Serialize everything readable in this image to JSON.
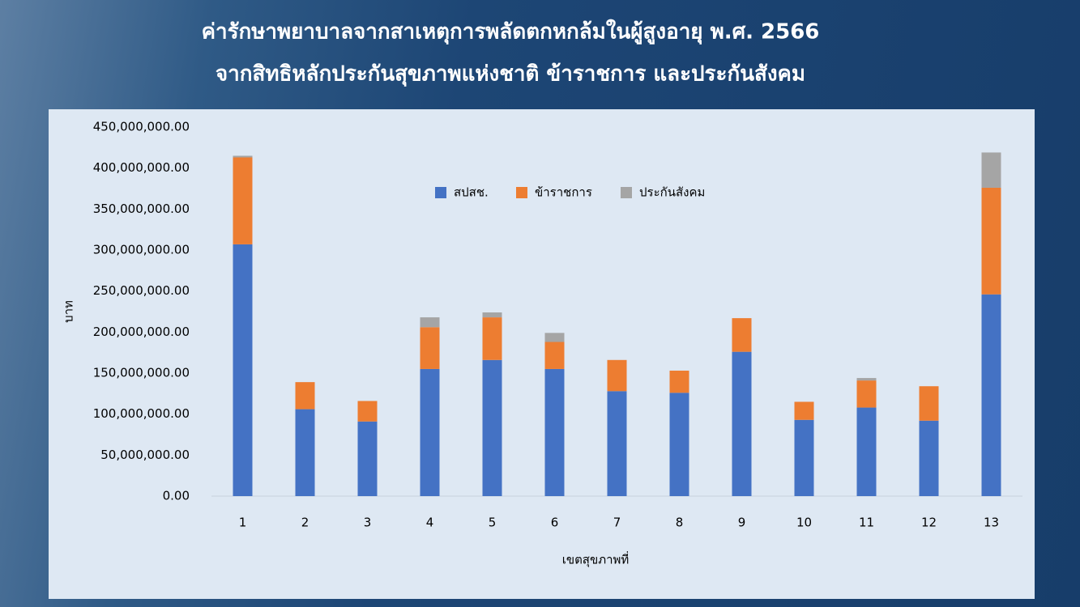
{
  "chart_data": {
    "type": "stacked_bar",
    "title": "ค่ารักษาพยาบาลจากสาเหตุการพลัดตกหกล้มในผู้สูงอายุ พ.ศ. 2566",
    "subtitle": "จากสิทธิหลักประกันสุขภาพแห่งชาติ ข้าราชการ และประกันสังคม",
    "x_label": "เขตสุขภาพที่",
    "y_label": "บาท",
    "categories": [
      "1",
      "2",
      "3",
      "4",
      "5",
      "6",
      "7",
      "8",
      "9",
      "10",
      "11",
      "12",
      "13"
    ],
    "series": [
      {
        "name": "สปสช.",
        "color": "#4472c4",
        "values": [
          307000000,
          106000000,
          91000000,
          155000000,
          166000000,
          155000000,
          128000000,
          126000000,
          176000000,
          93000000,
          108000000,
          92000000,
          246000000
        ]
      },
      {
        "name": "ข้าราชการ",
        "color": "#ed7d31",
        "values": [
          106000000,
          33000000,
          25000000,
          51000000,
          52000000,
          33000000,
          38000000,
          27000000,
          41000000,
          22000000,
          33000000,
          42000000,
          130000000
        ]
      },
      {
        "name": "ประกันสังคม",
        "color": "#a5a5a5",
        "values": [
          2000000,
          0,
          0,
          12000000,
          6000000,
          11000000,
          0,
          0,
          0,
          0,
          3000000,
          0,
          43000000
        ]
      }
    ],
    "ylim": [
      0,
      450000000
    ],
    "yticks": [
      {
        "value": 0,
        "label": "0.00"
      },
      {
        "value": 50000000,
        "label": "50,000,000.00"
      },
      {
        "value": 100000000,
        "label": "100,000,000.00"
      },
      {
        "value": 150000000,
        "label": "150,000,000.00"
      },
      {
        "value": 200000000,
        "label": "200,000,000.00"
      },
      {
        "value": 250000000,
        "label": "250,000,000.00"
      },
      {
        "value": 300000000,
        "label": "300,000,000.00"
      },
      {
        "value": 350000000,
        "label": "350,000,000.00"
      },
      {
        "value": 400000000,
        "label": "400,000,000.00"
      },
      {
        "value": 450000000,
        "label": "450,000,000.00"
      }
    ],
    "grid": false,
    "legend": "top"
  }
}
